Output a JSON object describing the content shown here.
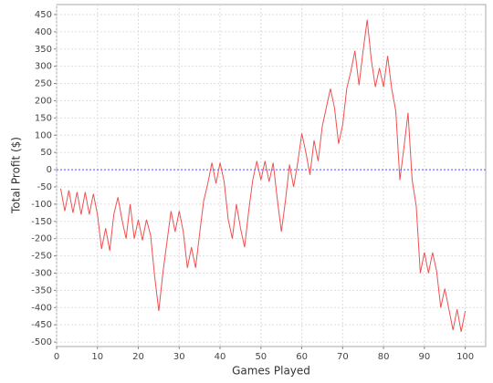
{
  "chart_data": {
    "type": "line",
    "x_label": "Games Played",
    "y_label": "Total Profit ($)",
    "x": [
      1,
      2,
      3,
      4,
      5,
      6,
      7,
      8,
      9,
      10,
      11,
      12,
      13,
      14,
      15,
      16,
      17,
      18,
      19,
      20,
      21,
      22,
      23,
      24,
      25,
      26,
      27,
      28,
      29,
      30,
      31,
      32,
      33,
      34,
      35,
      36,
      37,
      38,
      39,
      40,
      41,
      42,
      43,
      44,
      45,
      46,
      47,
      48,
      49,
      50,
      51,
      52,
      53,
      54,
      55,
      56,
      57,
      58,
      59,
      60,
      61,
      62,
      63,
      64,
      65,
      66,
      67,
      68,
      69,
      70,
      71,
      72,
      73,
      74,
      75,
      76,
      77,
      78,
      79,
      80,
      81,
      82,
      83,
      84,
      85,
      86,
      87,
      88,
      89,
      90,
      91,
      92,
      93,
      94,
      95,
      96,
      97,
      98,
      99,
      100
    ],
    "series": [
      {
        "color": "#f05050",
        "values": [
          -55,
          -120,
          -60,
          -125,
          -65,
          -130,
          -65,
          -130,
          -70,
          -130,
          -230,
          -170,
          -235,
          -130,
          -80,
          -145,
          -200,
          -100,
          -200,
          -145,
          -205,
          -145,
          -190,
          -310,
          -410,
          -300,
          -210,
          -120,
          -180,
          -120,
          -180,
          -285,
          -225,
          -285,
          -185,
          -90,
          -40,
          20,
          -40,
          20,
          -35,
          -145,
          -200,
          -100,
          -170,
          -225,
          -120,
          -30,
          25,
          -30,
          25,
          -35,
          20,
          -85,
          -180,
          -90,
          15,
          -50,
          20,
          105,
          50,
          -15,
          85,
          25,
          125,
          180,
          235,
          180,
          75,
          130,
          235,
          285,
          345,
          245,
          345,
          435,
          320,
          240,
          295,
          240,
          330,
          235,
          170,
          -30,
          65,
          165,
          -30,
          -105,
          -300,
          -240,
          -300,
          -240,
          -295,
          -400,
          -345,
          -405,
          -465,
          -405,
          -470,
          -410
        ]
      }
    ],
    "baseline": 0,
    "baseline_color": "#5555ff",
    "xlim": [
      0,
      105
    ],
    "ylim": [
      -513,
      479
    ],
    "xticks": [
      0,
      10,
      20,
      30,
      40,
      50,
      60,
      70,
      80,
      90,
      100
    ],
    "yticks": [
      -500,
      -450,
      -400,
      -350,
      -300,
      -250,
      -200,
      -150,
      -100,
      -50,
      0,
      50,
      100,
      150,
      200,
      250,
      300,
      350,
      400,
      450
    ],
    "grid": true
  }
}
